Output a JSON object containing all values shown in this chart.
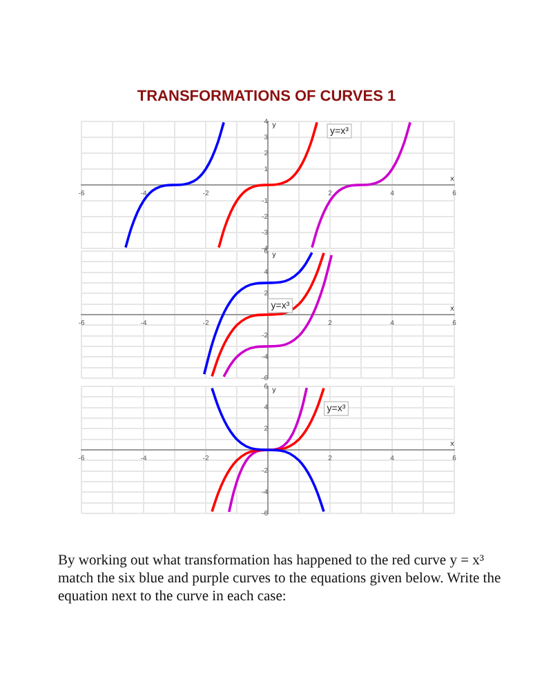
{
  "chart_data": [
    {
      "type": "line",
      "title": "TRANSFORMATIONS OF CURVES 1",
      "xlabel": "x",
      "ylabel": "y",
      "xlim": [
        -6,
        6
      ],
      "ylim": [
        -4,
        4
      ],
      "xticks": [
        -6,
        {
          "value": -5,
          "label": null
        },
        -4,
        {
          "value": -3,
          "label": null
        },
        -2,
        {
          "value": -1,
          "label": null
        },
        {
          "value": 0,
          "label": null
        },
        {
          "value": 1,
          "label": null
        },
        2,
        {
          "value": 3,
          "label": null
        },
        4,
        {
          "value": 5,
          "label": null
        },
        6
      ],
      "yticks": [
        -4,
        -3,
        -2,
        -1,
        {
          "value": 0,
          "label": null
        },
        1,
        2,
        3,
        4
      ],
      "grid": true,
      "legend": false,
      "marker": "none",
      "series": [
        {
          "color": "#0000ff",
          "x": [
            -4.58,
            -4.4,
            -4.2,
            -4,
            -3.8,
            -3.6,
            -3.3,
            -3,
            -2.7,
            -2.4,
            -2.2,
            -2,
            -1.8,
            -1.6,
            -1.42
          ],
          "values": [
            -3.94,
            -2.74,
            -1.73,
            -1,
            -0.51,
            -0.22,
            -0.03,
            0,
            0.03,
            0.22,
            0.51,
            1,
            1.73,
            2.74,
            3.94
          ]
        },
        {
          "color": "#ff0000",
          "x": [
            -1.58,
            -1.4,
            -1.2,
            -1,
            -0.8,
            -0.6,
            -0.3,
            0,
            0.3,
            0.6,
            0.8,
            1,
            1.2,
            1.4,
            1.58
          ],
          "values": [
            -3.94,
            -2.74,
            -1.73,
            -1,
            -0.51,
            -0.22,
            -0.03,
            0,
            0.03,
            0.22,
            0.51,
            1,
            1.73,
            2.74,
            3.94
          ]
        },
        {
          "color": "#cc00cc",
          "x": [
            1.42,
            1.6,
            1.8,
            2,
            2.2,
            2.4,
            2.7,
            3,
            3.3,
            3.6,
            3.8,
            4,
            4.2,
            4.4,
            4.58
          ],
          "values": [
            -3.94,
            -2.74,
            -1.73,
            -1,
            -0.51,
            -0.22,
            -0.03,
            0,
            0.03,
            0.22,
            0.51,
            1,
            1.73,
            2.74,
            3.94
          ]
        }
      ],
      "annotations": [
        {
          "text": "y=x³",
          "x": 2.3,
          "y": 3.4
        }
      ]
    },
    {
      "type": "line",
      "xlabel": "x",
      "ylabel": "y",
      "xlim": [
        -6,
        6
      ],
      "ylim": [
        -6,
        6
      ],
      "xticks": [
        -6,
        {
          "value": -5,
          "label": null
        },
        -4,
        {
          "value": -3,
          "label": null
        },
        -2,
        {
          "value": -1,
          "label": null
        },
        {
          "value": 0,
          "label": null
        },
        {
          "value": 1,
          "label": null
        },
        2,
        {
          "value": 3,
          "label": null
        },
        4,
        {
          "value": 5,
          "label": null
        },
        6
      ],
      "yticks": [
        -6,
        {
          "value": -5,
          "label": null
        },
        -4,
        {
          "value": -3,
          "label": null
        },
        -2,
        {
          "value": -1,
          "label": null
        },
        {
          "value": 0,
          "label": null
        },
        {
          "value": 1,
          "label": null
        },
        2,
        {
          "value": 3,
          "label": null
        },
        4,
        {
          "value": 5,
          "label": null
        },
        6
      ],
      "grid": true,
      "legend": false,
      "marker": "none",
      "series": [
        {
          "color": "#0000ff",
          "x": [
            -2.05,
            -1.8,
            -1.6,
            -1.4,
            -1.2,
            -1,
            -0.7,
            -0.4,
            0,
            0.4,
            0.7,
            1,
            1.2,
            1.42
          ],
          "values": [
            -5.62,
            -2.83,
            -1.1,
            0.26,
            1.27,
            2,
            2.66,
            2.94,
            3,
            3.06,
            3.34,
            4,
            4.73,
            5.86
          ]
        },
        {
          "color": "#ff0000",
          "x": [
            -1.8,
            -1.6,
            -1.4,
            -1.2,
            -1,
            -0.7,
            -0.4,
            0,
            0.4,
            0.7,
            1,
            1.2,
            1.4,
            1.6,
            1.8
          ],
          "values": [
            -5.83,
            -4.1,
            -2.74,
            -1.73,
            -1,
            -0.34,
            -0.06,
            0,
            0.06,
            0.34,
            1,
            1.73,
            2.74,
            4.1,
            5.83
          ]
        },
        {
          "color": "#cc00cc",
          "x": [
            -1.42,
            -1.2,
            -1,
            -0.7,
            -0.4,
            0,
            0.4,
            0.7,
            1,
            1.2,
            1.4,
            1.6,
            1.8,
            2.05
          ],
          "values": [
            -5.86,
            -4.73,
            -4,
            -3.34,
            -3.06,
            -3,
            -2.94,
            -2.66,
            -2,
            -1.27,
            -0.26,
            1.1,
            2.83,
            5.62
          ]
        }
      ],
      "annotations": [
        {
          "text": "y=x³",
          "x": 0.4,
          "y": 0.85
        }
      ]
    },
    {
      "type": "line",
      "xlabel": "x",
      "ylabel": "y",
      "xlim": [
        -6,
        6
      ],
      "ylim": [
        -6,
        6
      ],
      "xticks": [
        -6,
        {
          "value": -5,
          "label": null
        },
        -4,
        {
          "value": -3,
          "label": null
        },
        -2,
        {
          "value": -1,
          "label": null
        },
        {
          "value": 0,
          "label": null
        },
        {
          "value": 1,
          "label": null
        },
        2,
        {
          "value": 3,
          "label": null
        },
        4,
        {
          "value": 5,
          "label": null
        },
        6
      ],
      "yticks": [
        -6,
        {
          "value": -5,
          "label": null
        },
        -4,
        {
          "value": -3,
          "label": null
        },
        -2,
        {
          "value": -1,
          "label": null
        },
        {
          "value": 0,
          "label": null
        },
        {
          "value": 1,
          "label": null
        },
        2,
        {
          "value": 3,
          "label": null
        },
        4,
        {
          "value": 5,
          "label": null
        },
        6
      ],
      "grid": true,
      "legend": false,
      "marker": "none",
      "series": [
        {
          "color": "#0000ff",
          "x": [
            -1.8,
            -1.6,
            -1.4,
            -1.2,
            -1,
            -0.7,
            -0.4,
            0,
            0.4,
            0.7,
            1,
            1.2,
            1.4,
            1.6,
            1.8
          ],
          "values": [
            5.83,
            4.1,
            2.74,
            1.73,
            1,
            0.34,
            0.06,
            0,
            -0.06,
            -0.34,
            -1,
            -1.73,
            -2.74,
            -4.1,
            -5.83
          ]
        },
        {
          "color": "#ff0000",
          "x": [
            -1.8,
            -1.6,
            -1.4,
            -1.2,
            -1,
            -0.7,
            -0.4,
            0,
            0.4,
            0.7,
            1,
            1.2,
            1.4,
            1.6,
            1.8
          ],
          "values": [
            -5.83,
            -4.1,
            -2.74,
            -1.73,
            -1,
            -0.34,
            -0.06,
            0,
            0.06,
            0.34,
            1,
            1.73,
            2.74,
            4.1,
            5.83
          ]
        },
        {
          "color": "#cc00cc",
          "x": [
            -1.25,
            -1.1,
            -0.9,
            -0.7,
            -0.5,
            -0.25,
            0,
            0.25,
            0.5,
            0.7,
            0.9,
            1.1,
            1.25
          ],
          "values": [
            -5.86,
            -3.99,
            -2.19,
            -1.03,
            -0.38,
            -0.05,
            0,
            0.05,
            0.38,
            1.03,
            2.19,
            3.99,
            5.86
          ]
        }
      ],
      "annotations": [
        {
          "text": "y=x³",
          "x": 2.2,
          "y": 3.9
        },
        "By working out what transformation has happened to the red curve y = x³ match the six blue and purple curves to the equations given below. Write the equation next to the curve in each case:"
      ]
    }
  ]
}
